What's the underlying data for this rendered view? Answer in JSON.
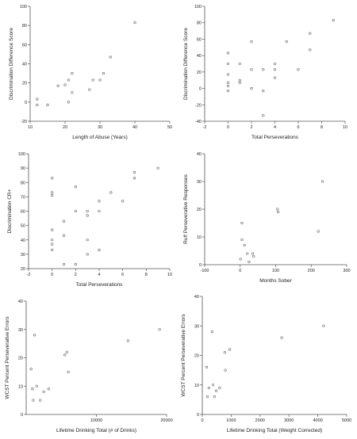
{
  "chart_data": [
    {
      "type": "scatter",
      "xlabel": "Length of Abuse (Years)",
      "ylabel": "Discrimination Difference Score",
      "xlim": [
        10,
        50
      ],
      "ylim": [
        -20,
        100
      ],
      "xticks": [
        10,
        20,
        30,
        40,
        50
      ],
      "yticks": [
        -20,
        0,
        20,
        40,
        60,
        80,
        100
      ],
      "points": [
        [
          12,
          3
        ],
        [
          12,
          -3
        ],
        [
          15,
          -3
        ],
        [
          18,
          17
        ],
        [
          20,
          18
        ],
        [
          21,
          23
        ],
        [
          21,
          0
        ],
        [
          22,
          10
        ],
        [
          22,
          30
        ],
        [
          27,
          13
        ],
        [
          28,
          23
        ],
        [
          30,
          23
        ],
        [
          31,
          30
        ],
        [
          33,
          47
        ],
        [
          40,
          83
        ]
      ]
    },
    {
      "type": "scatter",
      "xlabel": "Total Perseverations",
      "ylabel": "Discrimination Difference Score",
      "xlim": [
        -2,
        10
      ],
      "ylim": [
        -40,
        100
      ],
      "xticks": [
        -2,
        0,
        2,
        4,
        6,
        8,
        10
      ],
      "yticks": [
        -40,
        -20,
        0,
        20,
        40,
        60,
        80,
        100
      ],
      "points": [
        [
          0,
          43
        ],
        [
          0,
          30
        ],
        [
          0,
          17
        ],
        [
          0,
          7
        ],
        [
          0,
          3
        ],
        [
          0,
          -3
        ],
        [
          1,
          30
        ],
        [
          1,
          10
        ],
        [
          1,
          7
        ],
        [
          2,
          57
        ],
        [
          2,
          23
        ],
        [
          2,
          0
        ],
        [
          3,
          23
        ],
        [
          3,
          -3
        ],
        [
          3,
          -33
        ],
        [
          4,
          30
        ],
        [
          4,
          23
        ],
        [
          4,
          13
        ],
        [
          5,
          57
        ],
        [
          6,
          23
        ],
        [
          7,
          67
        ],
        [
          7,
          47
        ],
        [
          9,
          83
        ]
      ]
    },
    {
      "type": "scatter",
      "xlabel": "Total Perseverations",
      "ylabel": "Discrimination CR+",
      "xlim": [
        -2,
        10
      ],
      "ylim": [
        20,
        100
      ],
      "xticks": [
        -2,
        0,
        2,
        4,
        6,
        8,
        10
      ],
      "yticks": [
        20,
        30,
        40,
        50,
        60,
        70,
        80,
        90,
        100
      ],
      "points": [
        [
          0,
          83
        ],
        [
          0,
          73
        ],
        [
          0,
          71
        ],
        [
          0,
          47
        ],
        [
          0,
          40
        ],
        [
          0,
          37
        ],
        [
          0,
          33
        ],
        [
          1,
          53
        ],
        [
          1,
          43
        ],
        [
          1,
          23
        ],
        [
          2,
          77
        ],
        [
          2,
          60
        ],
        [
          2,
          23
        ],
        [
          3,
          60
        ],
        [
          3,
          57
        ],
        [
          3,
          40
        ],
        [
          3,
          30
        ],
        [
          4,
          67
        ],
        [
          4,
          60
        ],
        [
          4,
          33
        ],
        [
          5,
          73
        ],
        [
          6,
          67
        ],
        [
          7,
          87
        ],
        [
          7,
          83
        ],
        [
          9,
          90
        ]
      ]
    },
    {
      "type": "scatter",
      "xlabel": "Months Sober",
      "ylabel": "Ruff Perseverative Responses",
      "xlim": [
        -100,
        300
      ],
      "ylim": [
        0,
        40
      ],
      "xticks": [
        -100,
        0,
        100,
        200,
        300
      ],
      "yticks": [
        0,
        10,
        20,
        30,
        40
      ],
      "points": [
        [
          1,
          2
        ],
        [
          5,
          15
        ],
        [
          5,
          9
        ],
        [
          12,
          7
        ],
        [
          20,
          4
        ],
        [
          25,
          1
        ],
        [
          35,
          4
        ],
        [
          38,
          3
        ],
        [
          105,
          20
        ],
        [
          107,
          19
        ],
        [
          220,
          12
        ],
        [
          232,
          30
        ]
      ]
    },
    {
      "type": "scatter",
      "xlabel": "Lifetime Drinking Total (# of Drinks)",
      "ylabel": "WCST Percent Perseverative Errors",
      "xlim": [
        0,
        20000
      ],
      "ylim": [
        0,
        40
      ],
      "xticks": [
        10000,
        20000
      ],
      "yticks": [
        0,
        10,
        20,
        30,
        40
      ],
      "points": [
        [
          700,
          16
        ],
        [
          900,
          9
        ],
        [
          1000,
          5
        ],
        [
          1200,
          28
        ],
        [
          1500,
          10
        ],
        [
          2000,
          5
        ],
        [
          2500,
          8
        ],
        [
          3200,
          9
        ],
        [
          5500,
          21
        ],
        [
          5800,
          22
        ],
        [
          6000,
          15
        ],
        [
          14500,
          26
        ],
        [
          19000,
          30
        ]
      ]
    },
    {
      "type": "scatter",
      "xlabel": "Lifetime Drinking Total (Weight Corrected)",
      "ylabel": "WCST Percent Perseverative Errors",
      "xlim": [
        0,
        5000
      ],
      "ylim": [
        0,
        40
      ],
      "xticks": [
        0,
        1000,
        2000,
        3000,
        4000,
        5000
      ],
      "yticks": [
        0,
        10,
        20,
        30,
        40
      ],
      "points": [
        [
          150,
          16
        ],
        [
          180,
          6
        ],
        [
          230,
          9
        ],
        [
          340,
          28
        ],
        [
          370,
          10
        ],
        [
          420,
          6
        ],
        [
          480,
          8
        ],
        [
          600,
          9
        ],
        [
          780,
          21
        ],
        [
          800,
          15
        ],
        [
          950,
          22
        ],
        [
          2750,
          26
        ],
        [
          4200,
          30
        ]
      ]
    }
  ]
}
